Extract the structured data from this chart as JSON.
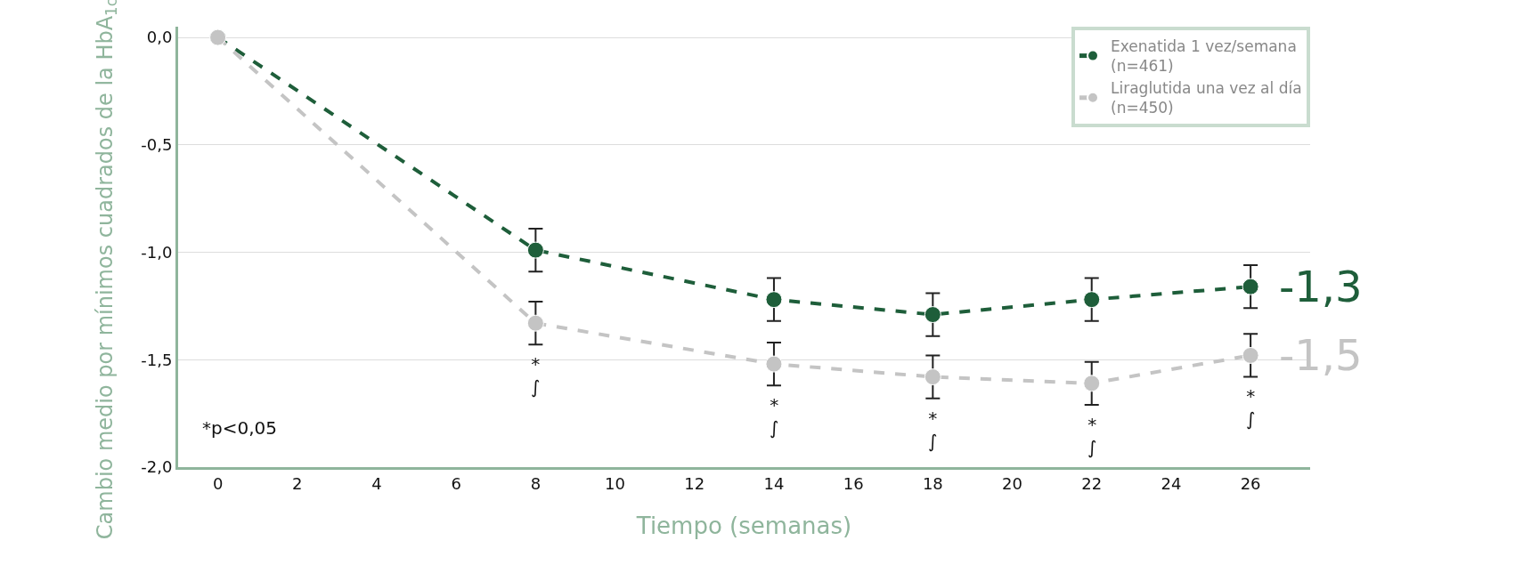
{
  "chart_data": {
    "type": "line",
    "xlabel": "Tiempo (semanas)",
    "ylabel": "Cambio medio por mínimos cuadrados de la HbA$_{1c}$ (%)",
    "x": [
      0,
      8,
      14,
      18,
      22,
      26
    ],
    "series": [
      {
        "name": "Exenatida 1 vez/semana\n(n=461)",
        "color": "#1e5e3a",
        "values": [
          0,
          -0.99,
          -1.22,
          -1.29,
          -1.22,
          -1.16
        ],
        "errors": [
          null,
          0.1,
          0.1,
          0.1,
          0.1,
          0.1
        ]
      },
      {
        "name": "Liraglutida una vez al día\n(n=450)",
        "color": "#c4c4c4",
        "values": [
          0,
          -1.33,
          -1.52,
          -1.58,
          -1.61,
          -1.48
        ],
        "errors": [
          null,
          0.1,
          0.1,
          0.1,
          0.1,
          0.1
        ]
      }
    ],
    "xlim": [
      -1,
      27.5
    ],
    "xticks": [
      0,
      2,
      4,
      6,
      8,
      10,
      12,
      14,
      16,
      18,
      20,
      22,
      24,
      26
    ],
    "ylim": [
      -2.0,
      0.05
    ],
    "yticks": [
      {
        "value": 0,
        "label": "0,0"
      },
      {
        "value": -0.5,
        "label": "-0,5"
      },
      {
        "value": -1,
        "label": "-1,0"
      },
      {
        "value": -1.5,
        "label": "-1,5"
      },
      {
        "value": -2,
        "label": "-2,0"
      }
    ],
    "grid": "y",
    "legend": "top right",
    "marker": "circle",
    "line_style": "dashed",
    "annotations": [
      "-1,3",
      "-1,5",
      {
        "text": "*\n∫",
        "x": 8,
        "y": -1.33
      },
      {
        "text": "*\n∫",
        "x": 14,
        "y": -1.52
      },
      {
        "text": "*\n∫",
        "x": 18,
        "y": -1.58
      },
      {
        "text": "*\n∫",
        "x": 22,
        "y": -1.61
      },
      {
        "text": "*\n∫",
        "x": 26,
        "y": -1.48
      },
      "*p<0,05"
    ]
  }
}
